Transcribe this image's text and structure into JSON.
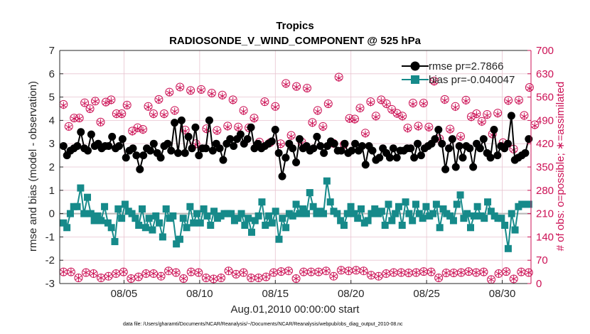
{
  "chart_data": {
    "type": "line",
    "title": "Tropics",
    "subtitle": "RADIOSONDE_V_WIND_COMPONENT @ 525 hPa",
    "xlabel": "Aug.01,2010 00:00:00 start",
    "ylabel": "rmse and bias (model - observation)",
    "y2label": "# of obs: o=possible; ∗=assimilated",
    "footnote": "data file: /Users/gharamti/Documents/NCAR/Reanalysis/~/Documents/NCAR/Reanalysis/webpub/obs_diag_output_2010-08.nc",
    "xlim": [
      0.75,
      31.9
    ],
    "ylim": [
      -3,
      7
    ],
    "y2lim": [
      0,
      700
    ],
    "x_ticks": [
      5,
      10,
      15,
      20,
      25,
      30
    ],
    "x_tick_labels": [
      "08/05",
      "08/10",
      "08/15",
      "08/20",
      "08/25",
      "08/30"
    ],
    "y_ticks": [
      -3,
      -2,
      -1,
      0,
      1,
      2,
      3,
      4,
      5,
      6,
      7
    ],
    "y_tick_labels": [
      "-3",
      "-2",
      "-1",
      "0",
      "1",
      "2",
      "3",
      "4",
      "5",
      "6",
      "7"
    ],
    "y2_ticks": [
      0,
      70,
      140,
      210,
      280,
      350,
      420,
      490,
      560,
      630,
      700
    ],
    "y2_tick_labels": [
      "0",
      "70",
      "140",
      "210",
      "280",
      "350",
      "420",
      "490",
      "560",
      "630",
      "700"
    ],
    "grid": true,
    "zero_line": true,
    "legend_position": "top-right",
    "colors": {
      "rmse": "#000000",
      "bias": "#168a8a",
      "obs": "#cc1155",
      "grid": "#e8c4d0",
      "zero": "#b5b5b5",
      "axes": "#262626"
    },
    "series": [
      {
        "name": "rmse pr=2.7866",
        "marker": "circle",
        "values": [
          2.9,
          2.5,
          2.7,
          2.8,
          2.9,
          3.5,
          2.8,
          2.7,
          3.4,
          2.9,
          3.0,
          2.8,
          2.9,
          2.9,
          3.3,
          2.8,
          2.9,
          3.2,
          2.4,
          2.7,
          2.8,
          2.5,
          1.9,
          2.5,
          2.8,
          2.7,
          3.0,
          2.6,
          2.4,
          2.9,
          3.0,
          2.7,
          3.9,
          2.6,
          4.0,
          2.6,
          3.3,
          2.8,
          3.7,
          2.5,
          2.8,
          2.8,
          4.0,
          2.7,
          3.0,
          2.8,
          2.3,
          3.0,
          3.2,
          2.9,
          3.2,
          3.4,
          3.0,
          3.2,
          3.7,
          2.8,
          3.0,
          2.8,
          2.9,
          3.0,
          3.1,
          3.6,
          2.6,
          1.6,
          2.4,
          3.0,
          2.8,
          2.2,
          3.2,
          2.8,
          2.9,
          2.7,
          2.8,
          3.3,
          2.9,
          2.6,
          2.9,
          3.1,
          3.0,
          2.7,
          2.7,
          3.0,
          2.6,
          2.7,
          3.0,
          2.7,
          2.9,
          2.1,
          2.9,
          2.7,
          2.3,
          2.4,
          2.8,
          2.6,
          2.4,
          2.8,
          2.4,
          2.7,
          2.7,
          2.8,
          2.8,
          2.4,
          3.0,
          2.5,
          2.8,
          2.9,
          3.0,
          3.2,
          3.6,
          3.0,
          1.9,
          2.8,
          3.2,
          2.0,
          2.9,
          2.4,
          2.9,
          2.8,
          2.0,
          3.0,
          2.8,
          3.2,
          2.6,
          2.4,
          3.6,
          2.5,
          2.9,
          2.8,
          3.0,
          4.2,
          2.3,
          2.4,
          2.5,
          2.6,
          3.2
        ]
      },
      {
        "name": "bias pr=-0.040047",
        "marker": "square",
        "values": [
          -0.4,
          -0.6,
          0.0,
          0.3,
          0.3,
          1.1,
          0.0,
          0.7,
          0.0,
          -0.3,
          -0.1,
          -0.3,
          0.3,
          -0.4,
          -0.6,
          -1.2,
          0.2,
          -0.2,
          0.4,
          0.1,
          0.0,
          -0.2,
          -0.5,
          0.2,
          -0.6,
          -0.2,
          -0.7,
          -0.1,
          -0.4,
          -1.0,
          0.2,
          -0.2,
          -0.1,
          -1.3,
          -1.1,
          -0.2,
          -0.6,
          0.3,
          -0.4,
          0.0,
          -0.4,
          0.2,
          -0.1,
          -0.5,
          0.1,
          -0.2,
          -0.1,
          0.0,
          0.0,
          0.0,
          -0.3,
          -0.2,
          0.0,
          -0.5,
          -0.2,
          -0.8,
          -0.3,
          -0.1,
          0.5,
          -0.5,
          -0.1,
          -0.4,
          0.1,
          -1.1,
          -0.2,
          -0.6,
          0.0,
          -0.1,
          0.4,
          0.0,
          0.2,
          0.0,
          0.9,
          0.3,
          0.0,
          0.1,
          0.0,
          1.4,
          0.5,
          0.1,
          0.0,
          -0.3,
          -0.5,
          0.0,
          0.3,
          0.0,
          -0.2,
          0.2,
          -0.4,
          -0.3,
          0.0,
          0.2,
          0.0,
          0.1,
          -0.5,
          0.4,
          -0.3,
          0.0,
          0.3,
          -0.5,
          0.5,
          0.0,
          -0.3,
          0.4,
          0.0,
          -0.2,
          0.3,
          -0.1,
          0.0,
          0.4,
          -0.6,
          0.2,
          0.0,
          -0.1,
          -0.3,
          0.4,
          0.8,
          -0.2,
          0.0,
          -0.6,
          -0.1,
          0.3,
          -0.1,
          -0.2,
          0.5,
          0.1,
          -0.1,
          -0.2,
          -0.2,
          -0.5,
          -1.5,
          0.0,
          -0.7,
          0.3,
          0.4,
          0.4,
          0.4
        ]
      }
    ],
    "obs_counts": {
      "name": "# of obs",
      "y_axis": "right",
      "possible_odd": [
        538,
        497,
        543,
        548,
        545,
        510,
        536,
        468,
        532,
        553,
        575,
        590,
        580,
        583,
        572,
        566,
        552,
        520,
        497,
        546,
        532,
        601,
        592,
        587,
        520,
        540,
        620,
        496,
        527,
        546,
        552,
        523,
        503,
        542,
        542,
        608,
        553,
        532,
        551,
        510,
        508,
        512,
        550,
        551,
        589
      ],
      "assimilated_odd": [
        535,
        495,
        541,
        547,
        543,
        507,
        534,
        465,
        530,
        551,
        573,
        588,
        578,
        581,
        570,
        563,
        549,
        517,
        494,
        544,
        530,
        598,
        590,
        585,
        517,
        538,
        617,
        493,
        525,
        543,
        549,
        520,
        500,
        539,
        540,
        605,
        550,
        529,
        548,
        507,
        505,
        509,
        547,
        548,
        586
      ],
      "possible_even": [
        472,
        497,
        525,
        485,
        552,
        510,
        458,
        463,
        510,
        510,
        520,
        461,
        420,
        465,
        460,
        473,
        470,
        468,
        425,
        423,
        420,
        445,
        425,
        484,
        472,
        421,
        418,
        494,
        452,
        503,
        540,
        511,
        467,
        473,
        470,
        435,
        464,
        442,
        501,
        487,
        449,
        423,
        404,
        505,
        477
      ],
      "assimilated_even": [
        470,
        495,
        523,
        483,
        549,
        507,
        455,
        460,
        507,
        507,
        517,
        458,
        417,
        462,
        457,
        470,
        467,
        465,
        422,
        420,
        417,
        442,
        422,
        481,
        469,
        418,
        415,
        491,
        449,
        500,
        537,
        508,
        464,
        470,
        467,
        432,
        461,
        439,
        498,
        484,
        446,
        420,
        401,
        502,
        474
      ],
      "possible_0z_12z": [
        35,
        35,
        17,
        33,
        30,
        17,
        22,
        30,
        35,
        15,
        20,
        30,
        30,
        22,
        38,
        33,
        15,
        35,
        33,
        17,
        14,
        17,
        38,
        28,
        33,
        17,
        17,
        20,
        33,
        36,
        38,
        15,
        35,
        35,
        35,
        38,
        22,
        40,
        38,
        40,
        38,
        25,
        22,
        30,
        33,
        33,
        32,
        33,
        36,
        35,
        17,
        32,
        32,
        33,
        36,
        33,
        35,
        12,
        30,
        36,
        14,
        35,
        33
      ],
      "assimilated_0z_12z": [
        35,
        35,
        17,
        33,
        30,
        17,
        22,
        30,
        35,
        15,
        20,
        30,
        30,
        22,
        38,
        33,
        15,
        35,
        33,
        17,
        14,
        17,
        38,
        28,
        33,
        17,
        17,
        20,
        33,
        36,
        38,
        15,
        35,
        35,
        35,
        38,
        22,
        40,
        38,
        40,
        38,
        25,
        22,
        30,
        33,
        33,
        32,
        33,
        36,
        35,
        17,
        32,
        32,
        33,
        36,
        33,
        35,
        12,
        30,
        36,
        14,
        35,
        33
      ]
    }
  }
}
